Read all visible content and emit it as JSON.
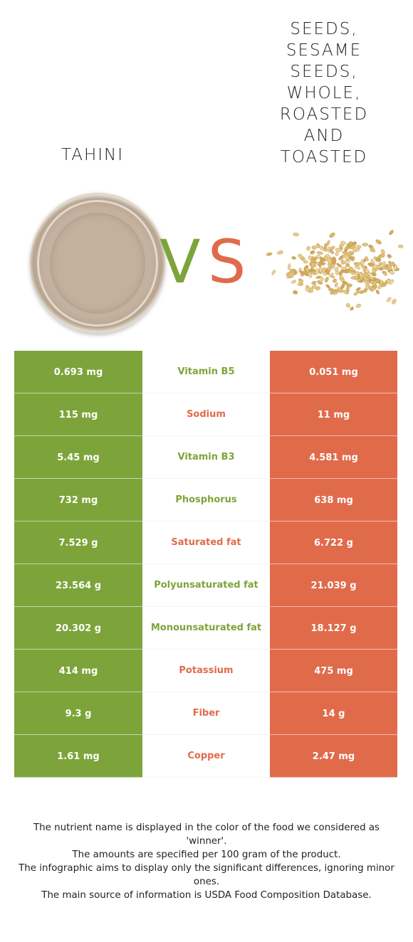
{
  "left_food": {
    "name": "Tahini",
    "image": "tahini-jar"
  },
  "right_food": {
    "name": "Seeds, sesame seeds, whole, roasted and toasted",
    "image": "sesame-seeds"
  },
  "vs": {
    "v": "V",
    "s": "S"
  },
  "colors": {
    "left": "#7da43a",
    "right": "#e06b4b"
  },
  "rows": [
    {
      "left": "0.693 mg",
      "nutrient": "Vitamin B5",
      "right": "0.051 mg",
      "winner": "left"
    },
    {
      "left": "115 mg",
      "nutrient": "Sodium",
      "right": "11 mg",
      "winner": "right"
    },
    {
      "left": "5.45 mg",
      "nutrient": "Vitamin B3",
      "right": "4.581 mg",
      "winner": "left"
    },
    {
      "left": "732 mg",
      "nutrient": "Phosphorus",
      "right": "638 mg",
      "winner": "left"
    },
    {
      "left": "7.529 g",
      "nutrient": "Saturated fat",
      "right": "6.722 g",
      "winner": "right"
    },
    {
      "left": "23.564 g",
      "nutrient": "Polyunsaturated fat",
      "right": "21.039 g",
      "winner": "left"
    },
    {
      "left": "20.302 g",
      "nutrient": "Monounsaturated fat",
      "right": "18.127 g",
      "winner": "left"
    },
    {
      "left": "414 mg",
      "nutrient": "Potassium",
      "right": "475 mg",
      "winner": "right"
    },
    {
      "left": "9.3 g",
      "nutrient": "Fiber",
      "right": "14 g",
      "winner": "right"
    },
    {
      "left": "1.61 mg",
      "nutrient": "Copper",
      "right": "2.47 mg",
      "winner": "right"
    }
  ],
  "footnote": [
    "The nutrient name is displayed in the color of the food we considered as 'winner'.",
    "The amounts are specified per 100 gram of the product.",
    "The infographic aims to display only the significant differences, ignoring minor ones.",
    "The main source of information is USDA Food Composition Database."
  ]
}
